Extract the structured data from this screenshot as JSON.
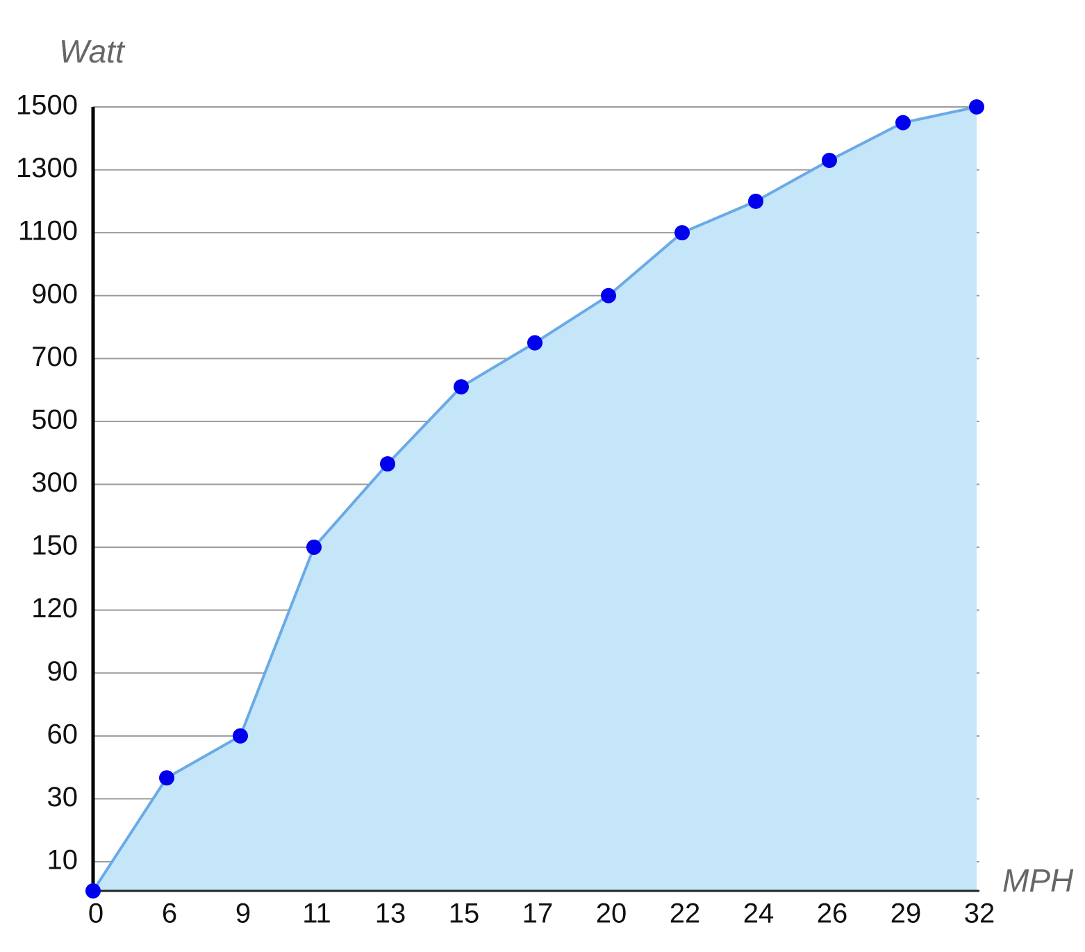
{
  "chart_data": {
    "type": "area",
    "y_label": "Watt",
    "x_label": "MPH",
    "categories": [
      "0",
      "6",
      "9",
      "11",
      "13",
      "15",
      "17",
      "20",
      "22",
      "24",
      "26",
      "29",
      "32"
    ],
    "values": [
      0,
      40,
      60,
      150,
      365,
      610,
      750,
      900,
      1100,
      1200,
      1330,
      1450,
      1500
    ],
    "ylim": [
      0,
      1500
    ],
    "yticks": [
      10,
      30,
      60,
      90,
      120,
      150,
      300,
      500,
      700,
      900,
      1100,
      1300,
      1500
    ],
    "grid": true,
    "line_color": "#6aaae6",
    "fill_color": "#c5e5f9",
    "marker_color": "#0000ee"
  }
}
